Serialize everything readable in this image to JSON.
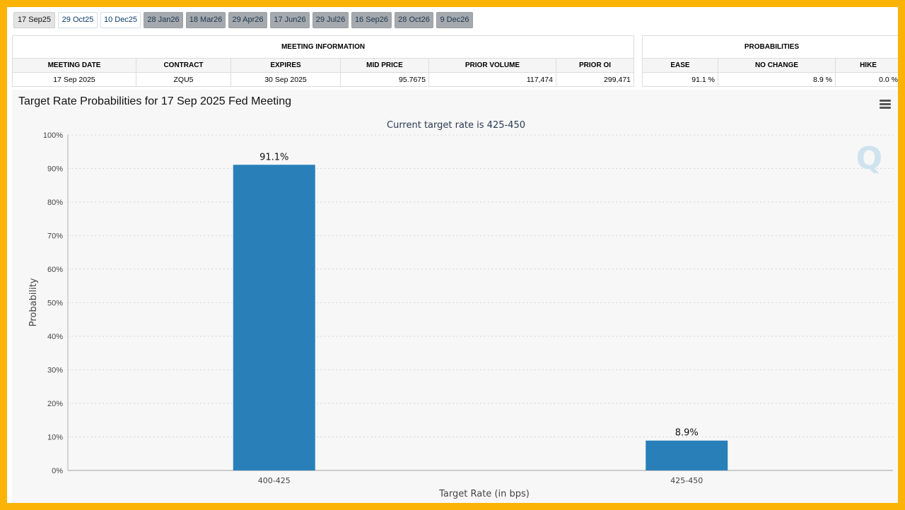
{
  "tabs": [
    {
      "label": "17 Sep25",
      "state": "active"
    },
    {
      "label": "29 Oct25",
      "state": "light"
    },
    {
      "label": "10 Dec25",
      "state": "light"
    },
    {
      "label": "28 Jan26",
      "state": "dim"
    },
    {
      "label": "18 Mar26",
      "state": "dim"
    },
    {
      "label": "29 Apr26",
      "state": "dim"
    },
    {
      "label": "17 Jun26",
      "state": "dim"
    },
    {
      "label": "29 Jul26",
      "state": "dim"
    },
    {
      "label": "16 Sep26",
      "state": "dim"
    },
    {
      "label": "28 Oct26",
      "state": "dim"
    },
    {
      "label": "9 Dec26",
      "state": "dim"
    }
  ],
  "meeting_info": {
    "title": "MEETING INFORMATION",
    "headers": [
      "MEETING DATE",
      "CONTRACT",
      "EXPIRES",
      "MID PRICE",
      "PRIOR VOLUME",
      "PRIOR OI"
    ],
    "row": [
      "17 Sep 2025",
      "ZQU5",
      "30 Sep 2025",
      "95.7675",
      "117,474",
      "299,471"
    ]
  },
  "probabilities": {
    "title": "PROBABILITIES",
    "headers": [
      "EASE",
      "NO CHANGE",
      "HIKE"
    ],
    "row": [
      "91.1 %",
      "8.9 %",
      "0.0 %"
    ]
  },
  "chart_title": "Target Rate Probabilities for 17 Sep 2025 Fed Meeting",
  "watermark": "Q",
  "chart_data": {
    "type": "bar",
    "subtitle": "Current target rate is 425-450",
    "categories": [
      "400-425",
      "425-450"
    ],
    "values": [
      91.1,
      8.9
    ],
    "data_labels": [
      "91.1%",
      "8.9%"
    ],
    "xlabel": "Target Rate (in bps)",
    "ylabel": "Probability",
    "ylim": [
      0,
      100
    ],
    "yticks": [
      "0%",
      "10%",
      "20%",
      "30%",
      "40%",
      "50%",
      "60%",
      "70%",
      "80%",
      "90%",
      "100%"
    ],
    "grid": true,
    "bar_color": "#2980b9"
  }
}
